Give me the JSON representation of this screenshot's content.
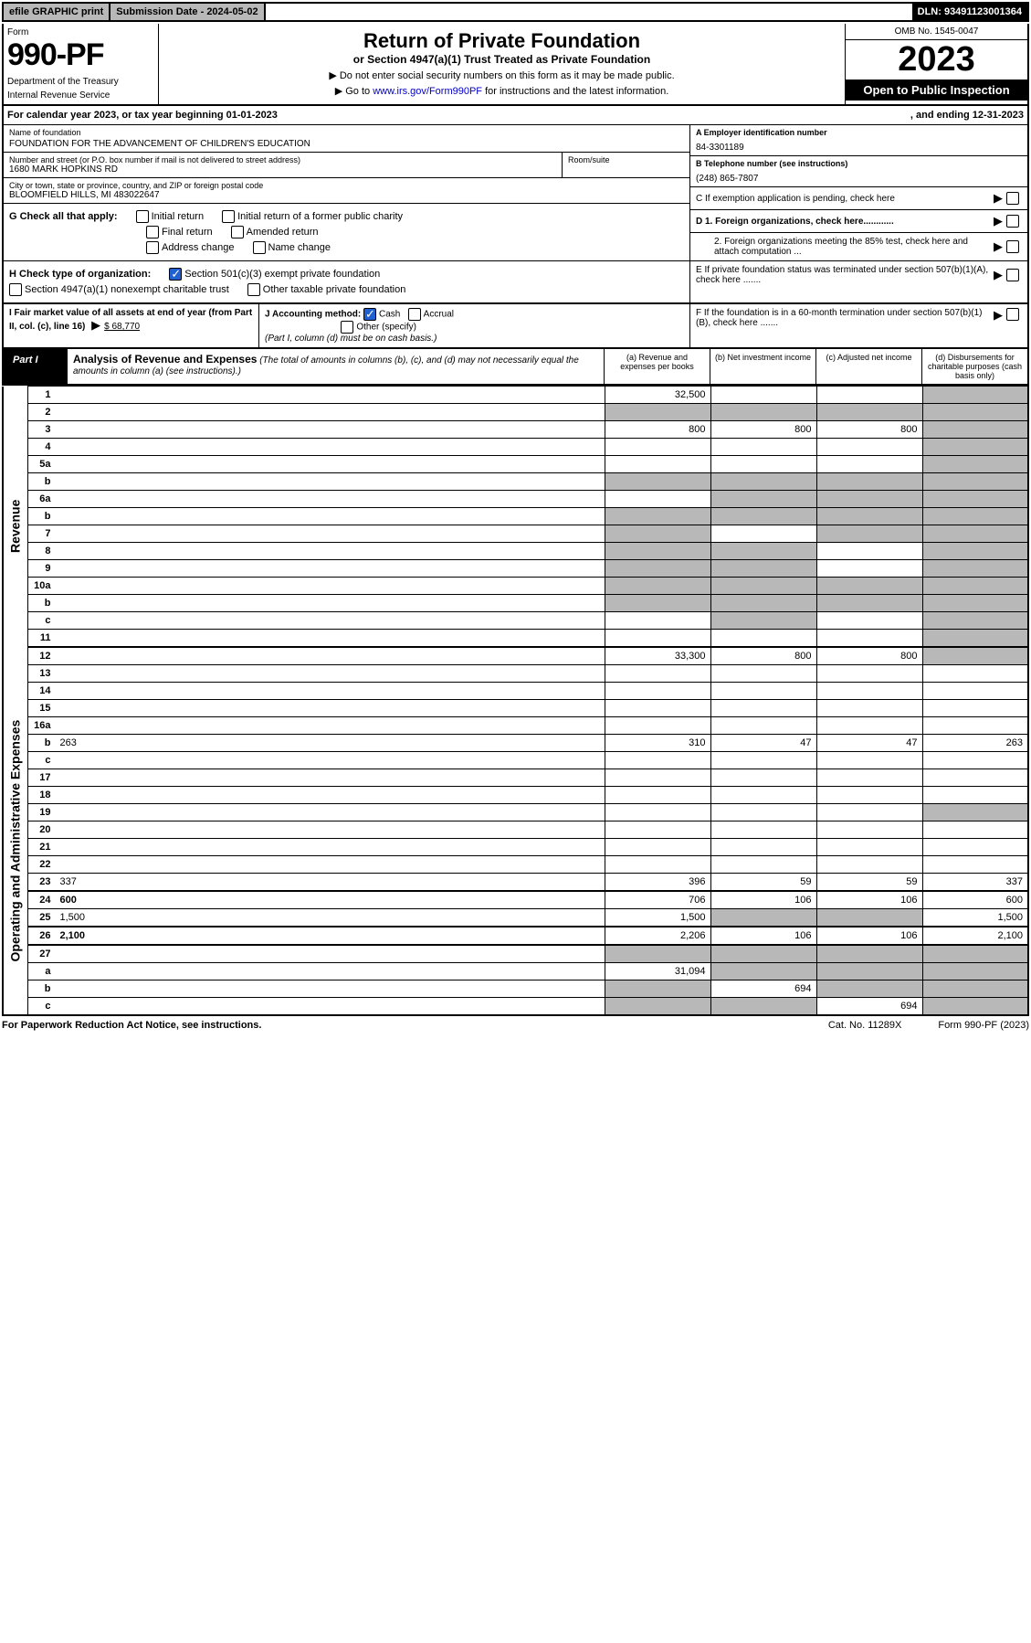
{
  "topbar": {
    "efile": "efile GRAPHIC print",
    "subdate_label": "Submission Date - 2024-05-02",
    "dln": "DLN: 93491123001364"
  },
  "header": {
    "form_label": "Form",
    "form_num": "990-PF",
    "dept1": "Department of the Treasury",
    "dept2": "Internal Revenue Service",
    "title": "Return of Private Foundation",
    "subtitle": "or Section 4947(a)(1) Trust Treated as Private Foundation",
    "instr1": "▶ Do not enter social security numbers on this form as it may be made public.",
    "instr2_pre": "▶ Go to ",
    "instr2_link": "www.irs.gov/Form990PF",
    "instr2_post": " for instructions and the latest information.",
    "omb": "OMB No. 1545-0047",
    "year": "2023",
    "open": "Open to Public Inspection"
  },
  "calyear": {
    "text1": "For calendar year 2023, or tax year beginning 01-01-2023",
    "text2": ", and ending 12-31-2023"
  },
  "info": {
    "name_lbl": "Name of foundation",
    "name_val": "FOUNDATION FOR THE ADVANCEMENT OF CHILDREN'S EDUCATION",
    "addr_lbl": "Number and street (or P.O. box number if mail is not delivered to street address)",
    "addr_val": "1680 MARK HOPKINS RD",
    "room_lbl": "Room/suite",
    "city_lbl": "City or town, state or province, country, and ZIP or foreign postal code",
    "city_val": "BLOOMFIELD HILLS, MI  483022647",
    "ein_lbl": "A Employer identification number",
    "ein_val": "84-3301189",
    "tel_lbl": "B Telephone number (see instructions)",
    "tel_val": "(248) 865-7807",
    "c_lbl": "C If exemption application is pending, check here",
    "d1_lbl": "D 1. Foreign organizations, check here............",
    "d2_lbl": "2. Foreign organizations meeting the 85% test, check here and attach computation ...",
    "e_lbl": "E  If private foundation status was terminated under section 507(b)(1)(A), check here .......",
    "f_lbl": "F  If the foundation is in a 60-month termination under section 507(b)(1)(B), check here .......",
    "g_lbl": "G Check all that apply:",
    "g_initial": "Initial return",
    "g_initial_former": "Initial return of a former public charity",
    "g_final": "Final return",
    "g_amended": "Amended return",
    "g_addr": "Address change",
    "g_name": "Name change",
    "h_lbl": "H Check type of organization:",
    "h_501c3": "Section 501(c)(3) exempt private foundation",
    "h_4947": "Section 4947(a)(1) nonexempt charitable trust",
    "h_other": "Other taxable private foundation",
    "i_lbl": "I Fair market value of all assets at end of year (from Part II, col. (c), line 16)",
    "i_val": "$  68,770",
    "j_lbl": "J Accounting method:",
    "j_cash": "Cash",
    "j_accrual": "Accrual",
    "j_other": "Other (specify)",
    "j_note": "(Part I, column (d) must be on cash basis.)"
  },
  "part1": {
    "label": "Part I",
    "title": "Analysis of Revenue and Expenses",
    "sub": " (The total of amounts in columns (b), (c), and (d) may not necessarily equal the amounts in column (a) (see instructions).)",
    "col_a": "(a)   Revenue and expenses per books",
    "col_b": "(b)   Net investment income",
    "col_c": "(c)   Adjusted net income",
    "col_d": "(d)   Disbursements for charitable purposes (cash basis only)",
    "rot_rev": "Revenue",
    "rot_exp": "Operating and Administrative Expenses"
  },
  "rows": [
    {
      "n": "1",
      "d": "",
      "a": "32,500",
      "b": "",
      "c": "",
      "ds": true
    },
    {
      "n": "2",
      "d": "",
      "a": "",
      "b": "",
      "c": "",
      "bs": true,
      "cs": true,
      "ds": true,
      "as": true
    },
    {
      "n": "3",
      "d": "",
      "a": "800",
      "b": "800",
      "c": "800",
      "ds": true
    },
    {
      "n": "4",
      "d": "",
      "a": "",
      "b": "",
      "c": "",
      "ds": true
    },
    {
      "n": "5a",
      "d": "",
      "a": "",
      "b": "",
      "c": "",
      "ds": true
    },
    {
      "n": "b",
      "d": "",
      "a": "",
      "b": "",
      "c": "",
      "bs": true,
      "cs": true,
      "ds": true,
      "as": true
    },
    {
      "n": "6a",
      "d": "",
      "a": "",
      "b": "",
      "c": "",
      "bs": true,
      "cs": true,
      "ds": true
    },
    {
      "n": "b",
      "d": "",
      "a": "",
      "b": "",
      "c": "",
      "bs": true,
      "cs": true,
      "ds": true,
      "as": true
    },
    {
      "n": "7",
      "d": "",
      "a": "",
      "b": "",
      "c": "",
      "as": true,
      "cs": true,
      "ds": true
    },
    {
      "n": "8",
      "d": "",
      "a": "",
      "b": "",
      "c": "",
      "as": true,
      "bs": true,
      "ds": true
    },
    {
      "n": "9",
      "d": "",
      "a": "",
      "b": "",
      "c": "",
      "as": true,
      "bs": true,
      "ds": true
    },
    {
      "n": "10a",
      "d": "",
      "a": "",
      "b": "",
      "c": "",
      "as": true,
      "bs": true,
      "cs": true,
      "ds": true
    },
    {
      "n": "b",
      "d": "",
      "a": "",
      "b": "",
      "c": "",
      "as": true,
      "bs": true,
      "cs": true,
      "ds": true
    },
    {
      "n": "c",
      "d": "",
      "a": "",
      "b": "",
      "c": "",
      "bs": true,
      "ds": true
    },
    {
      "n": "11",
      "d": "",
      "a": "",
      "b": "",
      "c": "",
      "ds": true
    },
    {
      "n": "12",
      "d": "",
      "a": "33,300",
      "b": "800",
      "c": "800",
      "ds": true,
      "bold": true,
      "thick": true
    },
    {
      "n": "13",
      "d": "",
      "a": "",
      "b": "",
      "c": ""
    },
    {
      "n": "14",
      "d": "",
      "a": "",
      "b": "",
      "c": ""
    },
    {
      "n": "15",
      "d": "",
      "a": "",
      "b": "",
      "c": ""
    },
    {
      "n": "16a",
      "d": "",
      "a": "",
      "b": "",
      "c": ""
    },
    {
      "n": "b",
      "d": "263",
      "a": "310",
      "b": "47",
      "c": "47"
    },
    {
      "n": "c",
      "d": "",
      "a": "",
      "b": "",
      "c": ""
    },
    {
      "n": "17",
      "d": "",
      "a": "",
      "b": "",
      "c": ""
    },
    {
      "n": "18",
      "d": "",
      "a": "",
      "b": "",
      "c": ""
    },
    {
      "n": "19",
      "d": "",
      "a": "",
      "b": "",
      "c": "",
      "ds": true
    },
    {
      "n": "20",
      "d": "",
      "a": "",
      "b": "",
      "c": ""
    },
    {
      "n": "21",
      "d": "",
      "a": "",
      "b": "",
      "c": ""
    },
    {
      "n": "22",
      "d": "",
      "a": "",
      "b": "",
      "c": ""
    },
    {
      "n": "23",
      "d": "337",
      "a": "396",
      "b": "59",
      "c": "59"
    },
    {
      "n": "24",
      "d": "600",
      "a": "706",
      "b": "106",
      "c": "106",
      "bold": true,
      "thick": true
    },
    {
      "n": "25",
      "d": "1,500",
      "a": "1,500",
      "b": "",
      "c": "",
      "bs": true,
      "cs": true
    },
    {
      "n": "26",
      "d": "2,100",
      "a": "2,206",
      "b": "106",
      "c": "106",
      "bold": true,
      "thick": true
    },
    {
      "n": "27",
      "d": "",
      "a": "",
      "b": "",
      "c": "",
      "as": true,
      "bs": true,
      "cs": true,
      "ds": true,
      "thick": true
    },
    {
      "n": "a",
      "d": "",
      "a": "31,094",
      "b": "",
      "c": "",
      "bs": true,
      "cs": true,
      "ds": true,
      "bold": true
    },
    {
      "n": "b",
      "d": "",
      "a": "",
      "b": "694",
      "c": "",
      "as": true,
      "cs": true,
      "ds": true,
      "bold": true
    },
    {
      "n": "c",
      "d": "",
      "a": "",
      "b": "",
      "c": "694",
      "as": true,
      "bs": true,
      "ds": true,
      "bold": true
    }
  ],
  "footer": {
    "f1": "For Paperwork Reduction Act Notice, see instructions.",
    "f2": "Cat. No. 11289X",
    "f3": "Form 990-PF (2023)"
  }
}
